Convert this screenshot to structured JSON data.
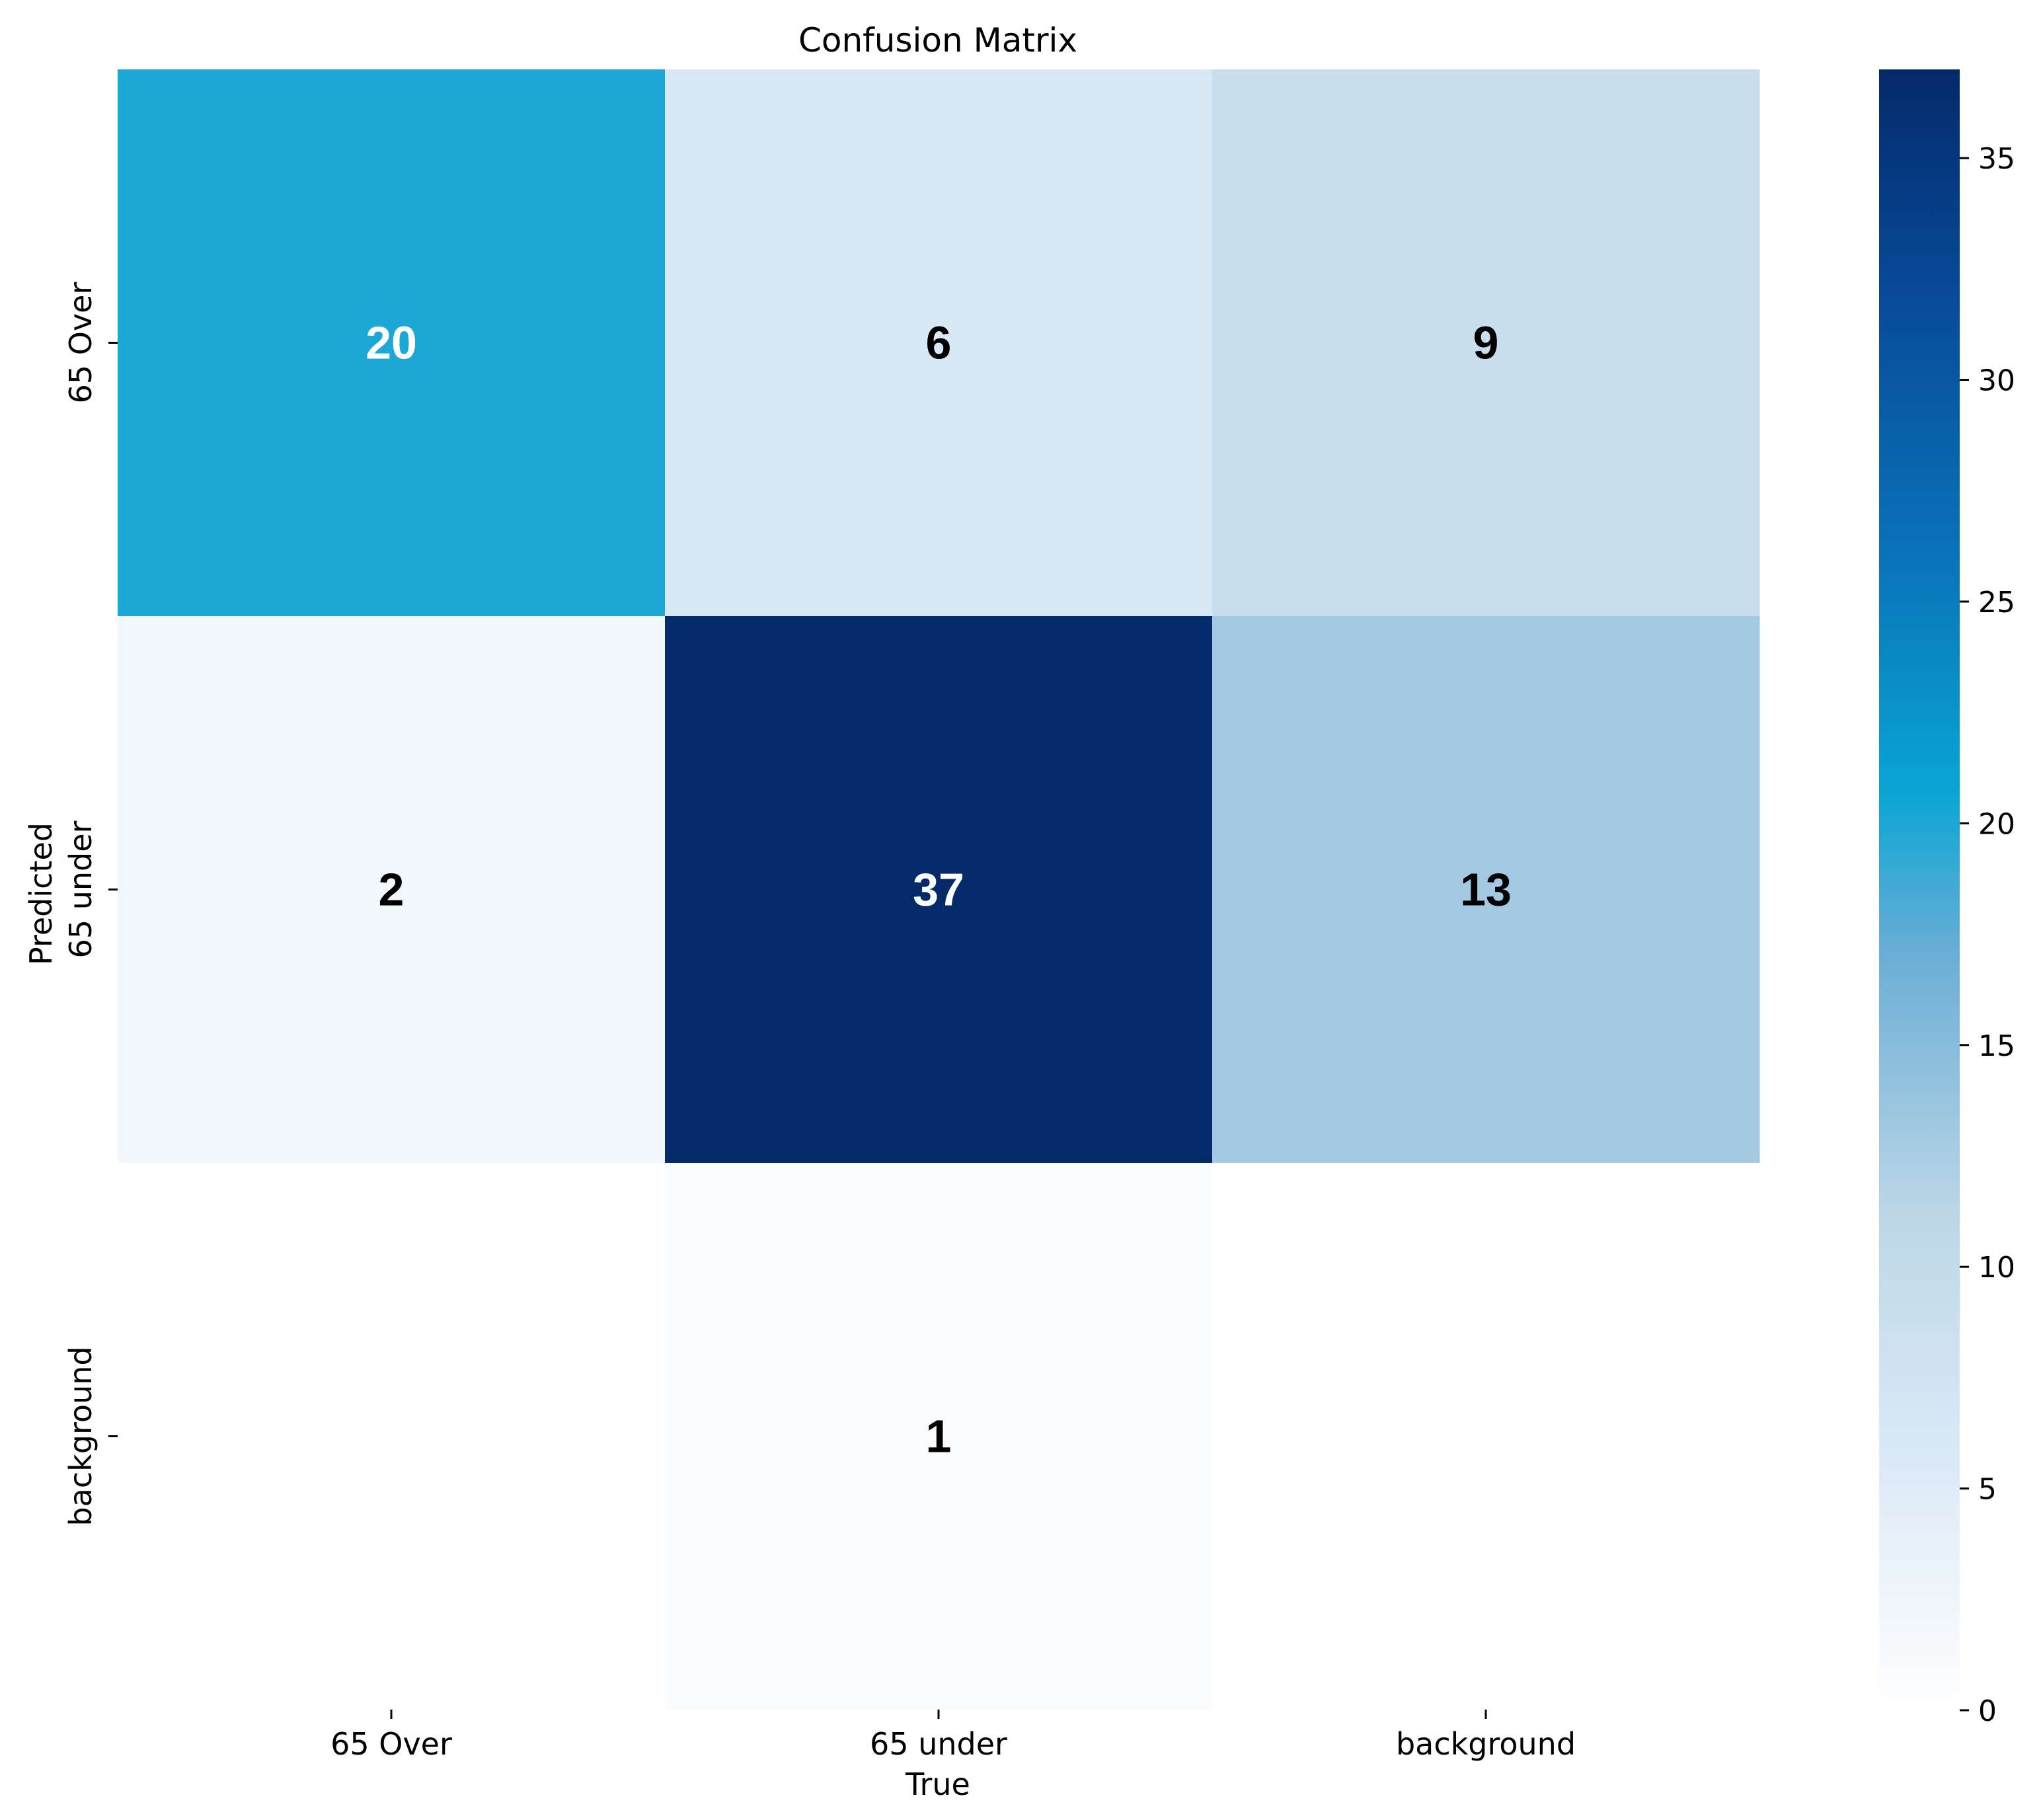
{
  "chart_data": {
    "type": "heatmap",
    "title": "Confusion Matrix",
    "xlabel": "True",
    "ylabel": "Predicted",
    "x_categories": [
      "65 Over",
      "65 under",
      "background"
    ],
    "y_categories": [
      "65 Over",
      "65 under",
      "background"
    ],
    "values": [
      [
        20,
        6,
        9
      ],
      [
        2,
        37,
        13
      ],
      [
        0,
        1,
        0
      ]
    ],
    "annotate_zero": false,
    "colormap": "Blues",
    "colorbar": {
      "range": [
        0,
        37
      ],
      "ticks": [
        0,
        5,
        10,
        15,
        20,
        25,
        30,
        35
      ]
    }
  }
}
